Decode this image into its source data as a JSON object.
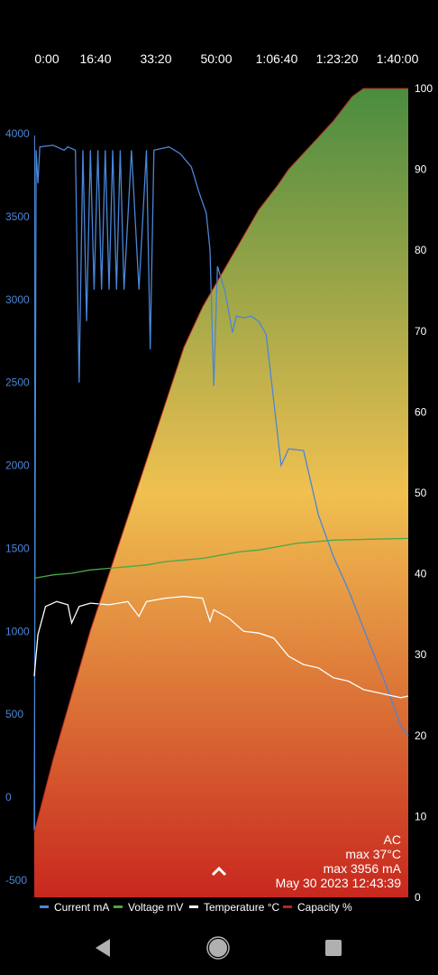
{
  "chart_data": {
    "type": "line",
    "x_ticks": [
      "0:00",
      "16:40",
      "33:20",
      "50:00",
      "1:06:40",
      "1:23:20",
      "1:40:00"
    ],
    "x_range_minutes": [
      0,
      100
    ],
    "left_axis": {
      "ticks": [
        "4000",
        "3500",
        "3000",
        "2500",
        "2000",
        "1500",
        "1000",
        "500",
        "0",
        "-500"
      ],
      "range": [
        -500,
        4000
      ]
    },
    "right_axis": {
      "ticks": [
        "100",
        "90",
        "80",
        "70",
        "60",
        "50",
        "40",
        "30",
        "20",
        "10",
        "0"
      ],
      "range": [
        0,
        100
      ]
    },
    "series": [
      {
        "name": "Current mA",
        "color": "#4a86d8",
        "axis": "left",
        "points": [
          [
            0,
            -200
          ],
          [
            0.5,
            3900
          ],
          [
            1,
            3700
          ],
          [
            1.5,
            3920
          ],
          [
            5,
            3930
          ],
          [
            8,
            3900
          ],
          [
            9,
            3920
          ],
          [
            11,
            3900
          ],
          [
            12,
            2500
          ],
          [
            13,
            3900
          ],
          [
            14,
            2870
          ],
          [
            15,
            3900
          ],
          [
            16,
            3060
          ],
          [
            17,
            3900
          ],
          [
            18,
            3060
          ],
          [
            19,
            3900
          ],
          [
            20,
            3060
          ],
          [
            21,
            3900
          ],
          [
            22,
            3060
          ],
          [
            23,
            3900
          ],
          [
            24,
            3060
          ],
          [
            26,
            3900
          ],
          [
            28,
            3060
          ],
          [
            30,
            3900
          ],
          [
            31,
            2700
          ],
          [
            32,
            3900
          ],
          [
            36,
            3920
          ],
          [
            39,
            3880
          ],
          [
            42,
            3800
          ],
          [
            44,
            3650
          ],
          [
            46,
            3520
          ],
          [
            47,
            3300
          ],
          [
            48,
            2480
          ],
          [
            49,
            3200
          ],
          [
            51,
            3050
          ],
          [
            53,
            2800
          ],
          [
            54,
            2900
          ],
          [
            56,
            2890
          ],
          [
            58,
            2900
          ],
          [
            60,
            2870
          ],
          [
            62,
            2790
          ],
          [
            66,
            2000
          ],
          [
            68,
            2100
          ],
          [
            72,
            2090
          ],
          [
            76,
            1700
          ],
          [
            80,
            1450
          ],
          [
            84,
            1250
          ],
          [
            88,
            1020
          ],
          [
            94,
            680
          ],
          [
            98,
            430
          ],
          [
            100,
            370
          ]
        ]
      },
      {
        "name": "Voltage mV",
        "color": "#48a848",
        "axis": "left",
        "points": [
          [
            0,
            1320
          ],
          [
            5,
            1340
          ],
          [
            10,
            1350
          ],
          [
            15,
            1370
          ],
          [
            20,
            1380
          ],
          [
            25,
            1390
          ],
          [
            30,
            1400
          ],
          [
            35,
            1420
          ],
          [
            40,
            1430
          ],
          [
            45,
            1440
          ],
          [
            50,
            1460
          ],
          [
            55,
            1480
          ],
          [
            60,
            1490
          ],
          [
            65,
            1510
          ],
          [
            70,
            1530
          ],
          [
            75,
            1540
          ],
          [
            80,
            1550
          ],
          [
            90,
            1555
          ],
          [
            100,
            1560
          ]
        ]
      },
      {
        "name": "Temperature °C",
        "color": "#ffffff",
        "axis": "left",
        "points": [
          [
            0,
            730
          ],
          [
            1,
            980
          ],
          [
            3,
            1150
          ],
          [
            6,
            1180
          ],
          [
            9,
            1160
          ],
          [
            10,
            1050
          ],
          [
            12,
            1150
          ],
          [
            15,
            1170
          ],
          [
            20,
            1160
          ],
          [
            25,
            1180
          ],
          [
            28,
            1090
          ],
          [
            30,
            1180
          ],
          [
            35,
            1200
          ],
          [
            40,
            1210
          ],
          [
            45,
            1200
          ],
          [
            47,
            1060
          ],
          [
            48,
            1130
          ],
          [
            52,
            1080
          ],
          [
            56,
            1000
          ],
          [
            60,
            990
          ],
          [
            64,
            960
          ],
          [
            68,
            850
          ],
          [
            72,
            800
          ],
          [
            76,
            780
          ],
          [
            80,
            720
          ],
          [
            84,
            700
          ],
          [
            88,
            650
          ],
          [
            94,
            620
          ],
          [
            98,
            600
          ],
          [
            100,
            610
          ]
        ]
      },
      {
        "name": "Capacity %",
        "color": "#b8261c",
        "axis": "right",
        "points": [
          [
            0,
            8
          ],
          [
            5,
            17
          ],
          [
            10,
            25
          ],
          [
            15,
            33
          ],
          [
            20,
            40
          ],
          [
            25,
            47
          ],
          [
            30,
            54
          ],
          [
            35,
            61
          ],
          [
            40,
            68
          ],
          [
            45,
            73
          ],
          [
            50,
            77
          ],
          [
            55,
            81
          ],
          [
            60,
            85
          ],
          [
            65,
            88
          ],
          [
            68,
            90
          ],
          [
            72,
            92
          ],
          [
            76,
            94
          ],
          [
            80,
            96
          ],
          [
            85,
            99
          ],
          [
            88,
            100
          ],
          [
            100,
            100
          ]
        ]
      }
    ],
    "legend_position": "bottom",
    "grid": false
  },
  "info": {
    "source": "AC",
    "max_temp": "max 37°C",
    "max_current": "max 3956 mA",
    "timestamp": "May 30 2023 12:43:39"
  },
  "colors": {
    "gradient_top": "#4a8c40",
    "gradient_mid": "#f0c050",
    "gradient_bottom": "#c8281e"
  },
  "icons": {
    "expand": "chevron-up-icon",
    "back": "back-triangle-icon",
    "home": "home-circle-icon",
    "recents": "recents-square-icon"
  }
}
